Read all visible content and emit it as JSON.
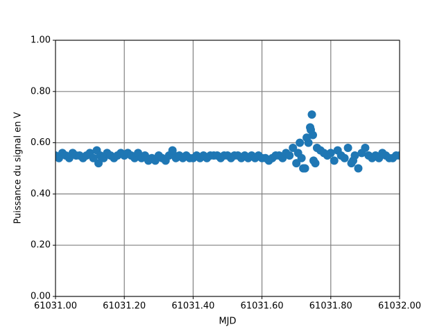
{
  "chart_data": {
    "type": "scatter",
    "xlabel": "MJD",
    "ylabel": "Puissance du signal en V",
    "color": "#1f77b4",
    "grid": true,
    "xlim": [
      61031.0,
      61032.0
    ],
    "xticks": [
      {
        "value": 61031.0,
        "label": "61031.00"
      },
      {
        "value": 61031.2,
        "label": "61031.20"
      },
      {
        "value": 61031.4,
        "label": "61031.40"
      },
      {
        "value": 61031.6,
        "label": "61031.60"
      },
      {
        "value": 61031.8,
        "label": "61031.80"
      },
      {
        "value": 61032.0,
        "label": "61032.00"
      }
    ],
    "ylim": [
      0,
      1
    ],
    "yticks": [
      {
        "value": 0,
        "label": "0.00"
      },
      {
        "value": 0.2,
        "label": "0.20"
      },
      {
        "value": 0.4,
        "label": "0.40"
      },
      {
        "value": 0.6,
        "label": "0.60"
      },
      {
        "value": 0.8,
        "label": "0.80"
      },
      {
        "value": 1,
        "label": "1.00"
      }
    ],
    "x": [
      61031.0,
      61031.01,
      61031.02,
      61031.03,
      61031.04,
      61031.05,
      61031.06,
      61031.07,
      61031.08,
      61031.09,
      61031.1,
      61031.11,
      61031.12,
      61031.13,
      61031.14,
      61031.15,
      61031.16,
      61031.17,
      61031.18,
      61031.19,
      61031.2,
      61031.21,
      61031.22,
      61031.23,
      61031.24,
      61031.25,
      61031.26,
      61031.27,
      61031.28,
      61031.29,
      61031.3,
      61031.31,
      61031.32,
      61031.33,
      61031.34,
      61031.35,
      61031.36,
      61031.37,
      61031.38,
      61031.39,
      61031.4,
      61031.41,
      61031.42,
      61031.43,
      61031.44,
      61031.45,
      61031.46,
      61031.47,
      61031.48,
      61031.49,
      61031.5,
      61031.51,
      61031.52,
      61031.53,
      61031.54,
      61031.55,
      61031.56,
      61031.57,
      61031.58,
      61031.59,
      61031.6,
      61031.61,
      61031.62,
      61031.63,
      61031.64,
      61031.65,
      61031.66,
      61031.67,
      61031.68,
      61031.69,
      61031.7,
      61031.71,
      61031.72,
      61031.73,
      61031.74,
      61031.75,
      61031.76,
      61031.77,
      61031.78,
      61031.79,
      61031.8,
      61031.81,
      61031.82,
      61031.83,
      61031.84,
      61031.85,
      61031.86,
      61031.87,
      61031.88,
      61031.89,
      61031.9,
      61031.91,
      61031.92,
      61031.93,
      61031.94,
      61031.95,
      61031.96,
      61031.97,
      61031.98,
      61031.99,
      61032.0,
      61031.745,
      61031.742,
      61031.748,
      61031.725,
      61031.735,
      61031.705,
      61031.715,
      61031.755,
      61031.125,
      61031.34,
      61031.865
    ],
    "values": [
      0.55,
      0.54,
      0.56,
      0.55,
      0.54,
      0.56,
      0.55,
      0.55,
      0.54,
      0.55,
      0.56,
      0.54,
      0.57,
      0.55,
      0.54,
      0.56,
      0.55,
      0.54,
      0.55,
      0.56,
      0.55,
      0.56,
      0.55,
      0.54,
      0.56,
      0.54,
      0.55,
      0.53,
      0.54,
      0.53,
      0.55,
      0.54,
      0.53,
      0.55,
      0.56,
      0.54,
      0.55,
      0.54,
      0.55,
      0.54,
      0.54,
      0.55,
      0.54,
      0.55,
      0.54,
      0.55,
      0.55,
      0.55,
      0.54,
      0.55,
      0.55,
      0.54,
      0.55,
      0.55,
      0.54,
      0.55,
      0.54,
      0.55,
      0.54,
      0.55,
      0.54,
      0.54,
      0.53,
      0.54,
      0.55,
      0.55,
      0.54,
      0.56,
      0.55,
      0.58,
      0.52,
      0.6,
      0.5,
      0.62,
      0.66,
      0.53,
      0.58,
      0.57,
      0.56,
      0.55,
      0.56,
      0.53,
      0.57,
      0.55,
      0.54,
      0.58,
      0.52,
      0.55,
      0.5,
      0.56,
      0.58,
      0.55,
      0.54,
      0.55,
      0.54,
      0.56,
      0.55,
      0.54,
      0.54,
      0.55,
      0.55,
      0.71,
      0.65,
      0.63,
      0.5,
      0.6,
      0.56,
      0.54,
      0.52,
      0.52,
      0.57,
      0.53
    ]
  }
}
